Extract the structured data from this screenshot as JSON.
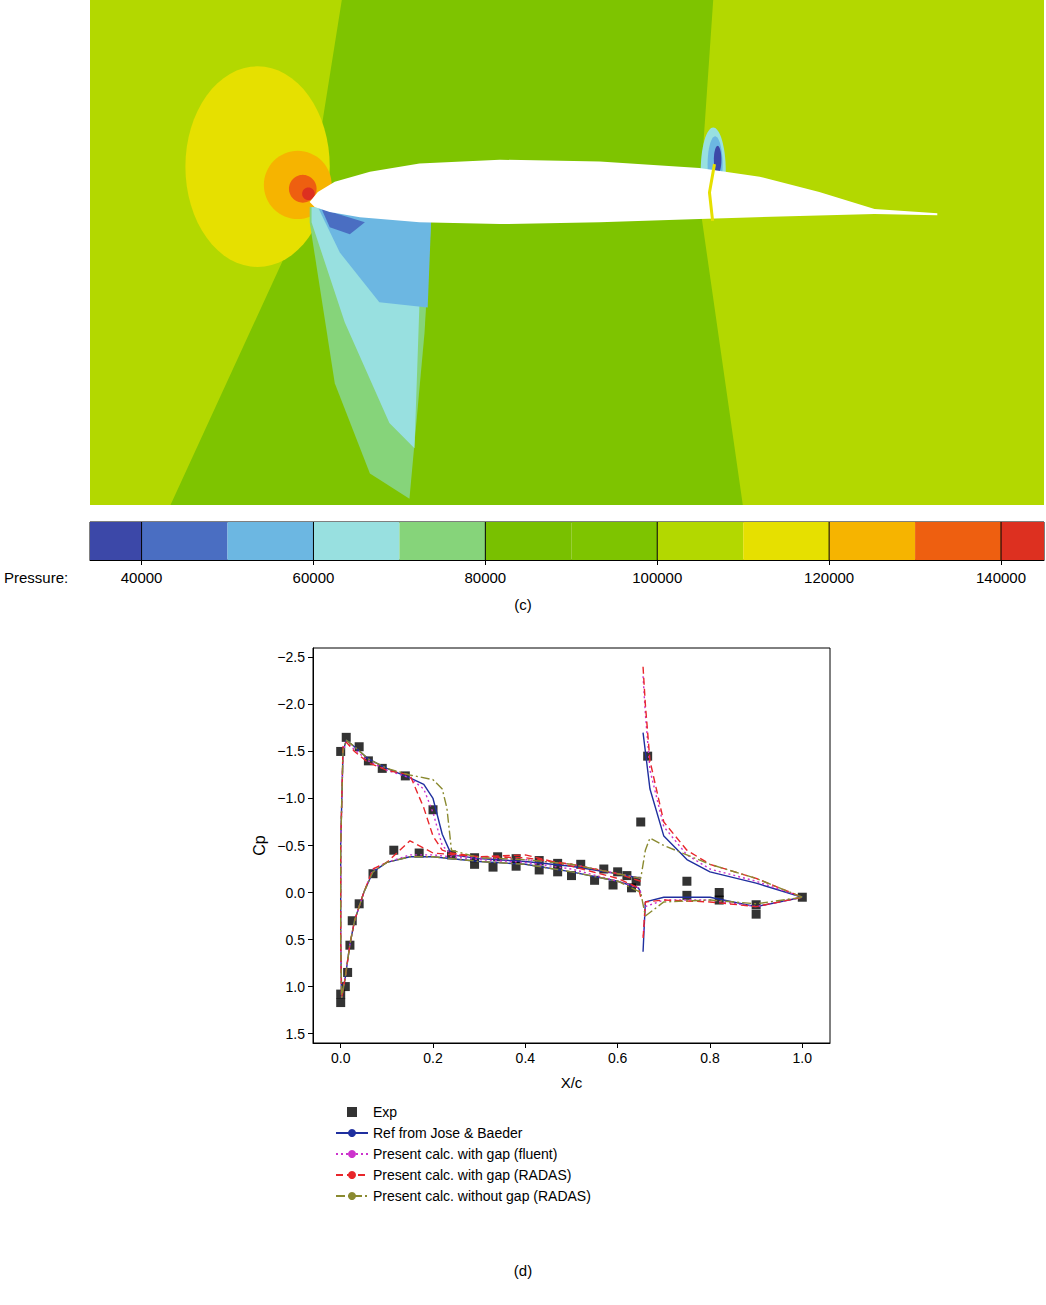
{
  "chart_data": [
    {
      "type": "contour",
      "caption": "(c)",
      "xlim": [
        -0.35,
        1.17
      ],
      "ylim": [
        -0.48,
        0.32
      ],
      "tick_labels": false,
      "colorbar": {
        "label": "Pressure:",
        "range": [
          34000,
          145000
        ],
        "ticks": [
          40000,
          60000,
          80000,
          100000,
          120000,
          140000
        ],
        "bounds": [
          34000,
          40000,
          50000,
          60000,
          70000,
          80000,
          90000,
          100000,
          110000,
          120000,
          130000,
          140000,
          145000
        ],
        "colors": [
          "#3c48a8",
          "#4a6ec2",
          "#6cb7e2",
          "#98e0e0",
          "#86d47a",
          "#79c000",
          "#7ec400",
          "#b3d800",
          "#e6e000",
          "#f6b400",
          "#ee5f10",
          "#dd3020"
        ]
      },
      "regions": [
        {
          "pressure": 105000,
          "x": [
            -0.4,
            1.2,
            1.2,
            -0.4
          ],
          "y": [
            0.35,
            0.35,
            -0.5,
            -0.5
          ]
        },
        {
          "pressure": 95000,
          "x": [
            0.056,
            0.645,
            0.621,
            0.693,
            -0.231,
            0
          ],
          "y": [
            0.35,
            0.35,
            0,
            -0.5,
            -0.5,
            0
          ]
        },
        {
          "pressure": 115000,
          "ellipse": [
            -0.083,
            0.056,
            0.115,
            0.159
          ]
        },
        {
          "pressure": 125000,
          "ellipse": [
            -0.019,
            0.027,
            0.054,
            0.054
          ]
        },
        {
          "pressure": 135000,
          "ellipse": [
            -0.011,
            0.021,
            0.022,
            0.022
          ]
        },
        {
          "pressure": 142000,
          "ellipse": [
            -0.002,
            0.013,
            0.01,
            0.01
          ]
        },
        {
          "pressure": 75000,
          "x": [
            0,
            0.194,
            0.183,
            0.159,
            0.096,
            0.04,
            0
          ],
          "y": [
            -0.008,
            -0.019,
            -0.207,
            -0.47,
            -0.43,
            -0.287,
            -0.032
          ]
        },
        {
          "pressure": 65000,
          "x": [
            0.003,
            0.194,
            0.175,
            0.167,
            0.127,
            0.056,
            0.003
          ],
          "y": [
            -0.008,
            -0.019,
            -0.159,
            -0.39,
            -0.35,
            -0.191,
            -0.032
          ]
        },
        {
          "pressure": 55000,
          "x": [
            0.013,
            0.194,
            0.188,
            0.111,
            0.048
          ],
          "y": [
            -0.008,
            -0.019,
            -0.167,
            -0.159,
            -0.08
          ]
        },
        {
          "pressure": 45000,
          "x": [
            0.019,
            0.088,
            0.064,
            0.032
          ],
          "y": [
            -0.011,
            -0.032,
            -0.051,
            -0.04
          ]
        },
        {
          "pressure": 65000,
          "ellipse": [
            0.643,
            0.048,
            0.02,
            0.07
          ]
        },
        {
          "pressure": 55000,
          "ellipse": [
            0.646,
            0.059,
            0.012,
            0.045
          ]
        },
        {
          "pressure": 37000,
          "ellipse": [
            0.65,
            0.067,
            0.006,
            0.022
          ]
        }
      ],
      "airfoil": {
        "color": "#ffffff",
        "x": [
          0,
          0.013,
          0.04,
          0.096,
          0.175,
          0.303,
          0.462,
          0.621,
          0.717,
          0.812,
          0.9,
          1.0,
          1.0,
          0.9,
          0.78,
          0.621,
          0.462,
          0.303,
          0.175,
          0.08,
          0.032,
          0.008
        ],
        "y": [
          0,
          0.016,
          0.032,
          0.048,
          0.061,
          0.067,
          0.064,
          0.054,
          0.04,
          0.016,
          -0.011,
          -0.018,
          -0.021,
          -0.019,
          -0.022,
          -0.027,
          -0.032,
          -0.035,
          -0.032,
          -0.024,
          -0.016,
          -0.008
        ]
      },
      "gap": {
        "pressure": 110000,
        "x": [
          0.645,
          0.637,
          0.642
        ],
        "y": [
          0.06,
          0.015,
          -0.03
        ]
      }
    },
    {
      "type": "line",
      "caption": "(d)",
      "x_label": "X/c",
      "y_label": "Cp",
      "xlim": [
        -0.06,
        1.06
      ],
      "ylim": [
        1.6,
        -2.6
      ],
      "xticks": [
        {
          "value": 0,
          "label": "0.0"
        },
        0.2,
        0.4,
        0.6,
        0.8,
        {
          "value": 1,
          "label": "1.0"
        }
      ],
      "yticks": [
        {
          "value": -2.5,
          "label": "−2.5"
        },
        {
          "value": -2,
          "label": "−2.0"
        },
        {
          "value": -1.5,
          "label": "−1.5"
        },
        {
          "value": -1,
          "label": "−1.0"
        },
        {
          "value": -0.5,
          "label": "−0.5"
        },
        {
          "value": 0,
          "label": "0.0"
        },
        0.5,
        {
          "value": 1,
          "label": "1.0"
        },
        1.5
      ],
      "legend": "bottom",
      "series": [
        {
          "name": "Exp",
          "type": "scatter",
          "marker": "square",
          "color": "#000000",
          "x": [
            0.0,
            0.012,
            0.04,
            0.06,
            0.09,
            0.14,
            0.2,
            0.24,
            0.29,
            0.34,
            0.38,
            0.43,
            0.47,
            0.52,
            0.57,
            0.6,
            0.62,
            0.64,
            0.65,
            0.665,
            0.75,
            0.82,
            0.9,
            1.0,
            0.0,
            0.0,
            0.01,
            0.015,
            0.02,
            0.025,
            0.04,
            0.07,
            0.115,
            0.17,
            0.29,
            0.33,
            0.38,
            0.43,
            0.47,
            0.5,
            0.55,
            0.59,
            0.63,
            0.75,
            0.82,
            0.9
          ],
          "values": [
            -1.5,
            -1.65,
            -1.55,
            -1.4,
            -1.32,
            -1.24,
            -0.88,
            -0.4,
            -0.37,
            -0.38,
            -0.36,
            -0.34,
            -0.31,
            -0.3,
            -0.25,
            -0.22,
            -0.18,
            -0.12,
            -0.75,
            -1.45,
            -0.12,
            0.0,
            0.13,
            0.05,
            1.17,
            1.08,
            1.0,
            0.85,
            0.56,
            0.3,
            0.12,
            -0.2,
            -0.45,
            -0.42,
            -0.3,
            -0.27,
            -0.28,
            -0.24,
            -0.22,
            -0.18,
            -0.13,
            -0.08,
            -0.05,
            0.03,
            0.08,
            0.23
          ]
        },
        {
          "name": "Ref from Jose & Baeder",
          "type": "line",
          "line_style": "solid",
          "color": "#1f2f9f",
          "x": [
            0.65,
            0.6,
            0.5,
            0.4,
            0.3,
            0.24,
            0.22,
            0.2,
            0.18,
            0.15,
            0.1,
            0.06,
            0.03,
            0.012,
            0.005,
            0.0,
            0.0,
            0.002,
            0.01,
            0.02,
            0.03,
            0.05,
            0.07,
            0.1,
            0.15,
            0.2,
            0.3,
            0.4,
            0.5,
            0.6,
            0.645,
            0.65,
            0.65,
            0.655,
            0.66,
            0.67,
            0.7,
            0.75,
            0.8,
            0.9,
            1.0,
            0.9,
            0.8,
            0.7,
            0.66,
            0.655
          ],
          "values": [
            -0.15,
            -0.2,
            -0.28,
            -0.33,
            -0.36,
            -0.4,
            -0.62,
            -1.0,
            -1.15,
            -1.22,
            -1.32,
            -1.42,
            -1.55,
            -1.62,
            -1.5,
            -0.5,
            0.5,
            1.12,
            0.9,
            0.55,
            0.3,
            0.0,
            -0.22,
            -0.32,
            -0.38,
            -0.38,
            -0.33,
            -0.3,
            -0.22,
            -0.12,
            -0.05,
            0.0,
            null,
            -1.7,
            -1.5,
            -1.1,
            -0.6,
            -0.35,
            -0.22,
            -0.1,
            0.05,
            0.15,
            0.05,
            0.05,
            0.1,
            0.63
          ]
        },
        {
          "name": "Present calc. with gap (fluent)",
          "type": "line",
          "line_style": "dotted",
          "color": "#cc33cc",
          "x": [
            0.65,
            0.6,
            0.5,
            0.4,
            0.3,
            0.24,
            0.22,
            0.2,
            0.18,
            0.15,
            0.1,
            0.06,
            0.03,
            0.012,
            0.005,
            0.0,
            0.0,
            0.002,
            0.01,
            0.02,
            0.03,
            0.05,
            0.07,
            0.1,
            0.15,
            0.2,
            0.3,
            0.4,
            0.5,
            0.6,
            0.645,
            0.65,
            0.65,
            0.655,
            0.66,
            0.67,
            0.7,
            0.75,
            0.8,
            0.9,
            1.0,
            0.9,
            0.8,
            0.7,
            0.66,
            0.655
          ],
          "values": [
            -0.15,
            -0.2,
            -0.3,
            -0.35,
            -0.37,
            -0.4,
            -0.5,
            -0.85,
            -1.1,
            -1.22,
            -1.3,
            -1.4,
            -1.52,
            -1.6,
            -1.5,
            -0.5,
            0.5,
            1.12,
            0.9,
            0.55,
            0.3,
            0.0,
            -0.25,
            -0.32,
            -0.4,
            -0.4,
            -0.35,
            -0.32,
            -0.25,
            -0.12,
            -0.05,
            0.0,
            null,
            -2.3,
            -1.9,
            -1.3,
            -0.7,
            -0.4,
            -0.25,
            -0.12,
            0.05,
            0.15,
            0.08,
            0.08,
            0.15,
            0.5
          ]
        },
        {
          "name": "Present calc. with gap (RADAS)",
          "type": "line",
          "line_style": "dashed",
          "color": "#e8262b",
          "x": [
            0.65,
            0.6,
            0.5,
            0.4,
            0.3,
            0.24,
            0.22,
            0.2,
            0.18,
            0.15,
            0.1,
            0.06,
            0.03,
            0.012,
            0.005,
            0.0,
            0.0,
            0.002,
            0.01,
            0.02,
            0.03,
            0.05,
            0.07,
            0.1,
            0.15,
            0.2,
            0.3,
            0.4,
            0.5,
            0.6,
            0.645,
            0.65,
            0.65,
            0.655,
            0.66,
            0.67,
            0.7,
            0.75,
            0.8,
            0.9,
            1.0,
            0.9,
            0.8,
            0.7,
            0.66,
            0.655
          ],
          "values": [
            -0.12,
            -0.2,
            -0.3,
            -0.37,
            -0.38,
            -0.42,
            -0.45,
            -0.6,
            -0.9,
            -1.25,
            -1.3,
            -1.38,
            -1.5,
            -1.6,
            -1.55,
            -0.5,
            0.5,
            1.12,
            0.9,
            0.55,
            0.3,
            0.0,
            -0.25,
            -0.32,
            -0.55,
            -0.42,
            -0.38,
            -0.4,
            -0.28,
            -0.15,
            -0.05,
            0.05,
            null,
            -2.4,
            -2.0,
            -1.4,
            -0.75,
            -0.45,
            -0.3,
            -0.15,
            0.05,
            0.15,
            0.1,
            0.08,
            0.1,
            0.5
          ]
        },
        {
          "name": "Present calc. without gap (RADAS)",
          "type": "line",
          "line_style": "dashdot",
          "color": "#8a8a30",
          "x": [
            1.0,
            0.9,
            0.8,
            0.7,
            0.67,
            0.66,
            0.65,
            0.6,
            0.5,
            0.4,
            0.3,
            0.24,
            0.23,
            0.22,
            0.2,
            0.15,
            0.1,
            0.06,
            0.03,
            0.012,
            0.005,
            0.0,
            0.0,
            0.002,
            0.01,
            0.02,
            0.03,
            0.05,
            0.07,
            0.1,
            0.15,
            0.2,
            0.3,
            0.4,
            0.5,
            0.6,
            0.65,
            0.66,
            0.7,
            0.8,
            0.9,
            1.0
          ],
          "values": [
            0.05,
            -0.15,
            -0.3,
            -0.5,
            -0.58,
            -0.45,
            -0.15,
            -0.2,
            -0.3,
            -0.35,
            -0.37,
            -0.45,
            -0.9,
            -1.1,
            -1.2,
            -1.25,
            -1.32,
            -1.42,
            -1.55,
            -1.62,
            -1.5,
            -0.5,
            0.5,
            1.12,
            0.9,
            0.55,
            0.3,
            0.0,
            -0.22,
            -0.32,
            -0.38,
            -0.38,
            -0.33,
            -0.3,
            -0.22,
            -0.12,
            0.0,
            0.25,
            0.1,
            0.08,
            0.12,
            0.05
          ]
        }
      ]
    }
  ]
}
